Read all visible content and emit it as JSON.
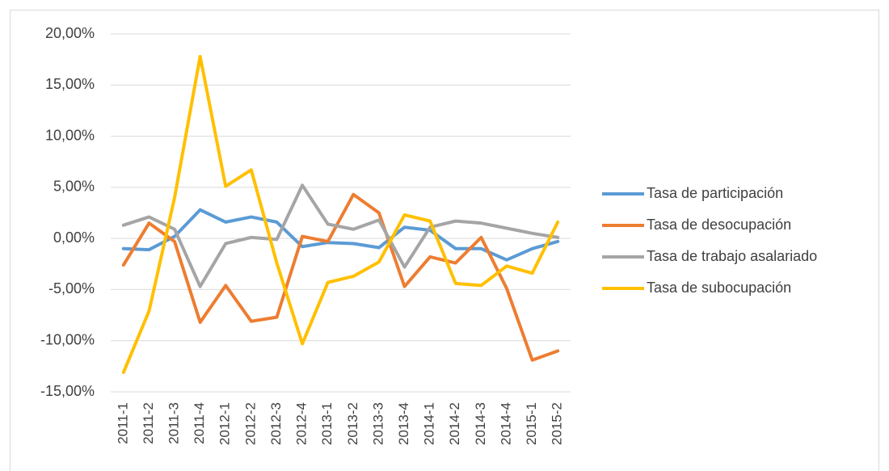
{
  "chart_data": {
    "type": "line",
    "categories": [
      "2011-1",
      "2011-2",
      "2011-3",
      "2011-4",
      "2012-1",
      "2012-2",
      "2012-3",
      "2012-4",
      "2013-1",
      "2013-2",
      "2013-3",
      "2013-4",
      "2014-1",
      "2014-2",
      "2014-3",
      "2014-4",
      "2015-1",
      "2015-2"
    ],
    "series": [
      {
        "name": "Tasa de participación",
        "color": "#5b9bd5",
        "values": [
          -1.0,
          -1.1,
          0.2,
          2.8,
          1.6,
          2.1,
          1.6,
          -0.8,
          -0.4,
          -0.5,
          -0.9,
          1.1,
          0.8,
          -1.0,
          -1.0,
          -2.1,
          -1.0,
          -0.3
        ]
      },
      {
        "name": "Tasa de desocupación",
        "color": "#ed7d31",
        "values": [
          -2.6,
          1.5,
          -0.3,
          -8.2,
          -4.6,
          -8.1,
          -7.7,
          0.2,
          -0.3,
          4.3,
          2.5,
          -4.7,
          -1.8,
          -2.4,
          0.1,
          -4.9,
          -11.9,
          -11.0
        ]
      },
      {
        "name": "Tasa de trabajo asalariado",
        "color": "#a5a5a5",
        "values": [
          1.3,
          2.1,
          0.9,
          -4.7,
          -0.5,
          0.1,
          -0.1,
          5.2,
          1.4,
          0.9,
          1.8,
          -2.8,
          1.1,
          1.7,
          1.5,
          1.0,
          0.5,
          0.1
        ]
      },
      {
        "name": "Tasa de subocupación",
        "color": "#ffc000",
        "values": [
          -13.1,
          -7.1,
          4.0,
          17.8,
          5.1,
          6.7,
          -2.4,
          -10.3,
          -4.3,
          -3.7,
          -2.3,
          2.3,
          1.7,
          -4.4,
          -4.6,
          -2.7,
          -3.4,
          1.6
        ]
      }
    ],
    "ylim": [
      -15,
      20
    ],
    "yticks": [
      {
        "value": -15,
        "label": "-15,00%"
      },
      {
        "value": -10,
        "label": "-10,00%"
      },
      {
        "value": -5,
        "label": "-5,00%"
      },
      {
        "value": 0,
        "label": "0,00%"
      },
      {
        "value": 5,
        "label": "5,00%"
      },
      {
        "value": 10,
        "label": "10,00%"
      },
      {
        "value": 15,
        "label": "15,00%"
      },
      {
        "value": 20,
        "label": "20,00%"
      }
    ],
    "grid": true,
    "legend": "right"
  }
}
